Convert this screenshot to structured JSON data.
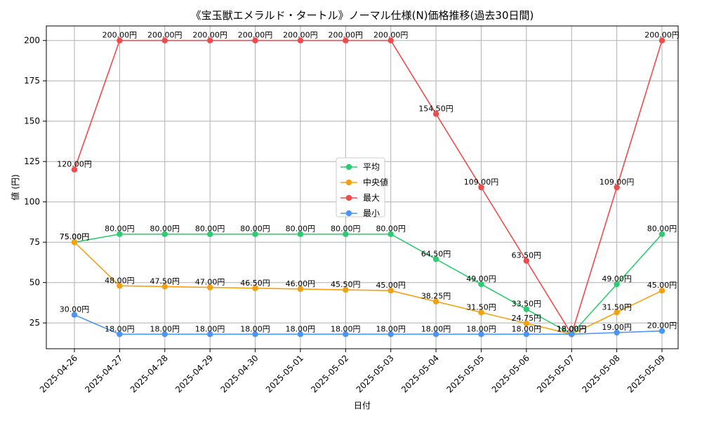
{
  "chart_data": {
    "type": "line",
    "title": "《宝玉獣エメラルド・タートル》ノーマル仕様(N)価格推移(過去30日間)",
    "xlabel": "日付",
    "ylabel": "値 (円)",
    "value_suffix": "円",
    "grid": true,
    "legend_position": "center",
    "ylim": [
      9,
      209
    ],
    "yticks": [
      25,
      50,
      75,
      100,
      125,
      150,
      175,
      200
    ],
    "categories": [
      "2025-04-26",
      "2025-04-27",
      "2025-04-28",
      "2025-04-29",
      "2025-04-30",
      "2025-05-01",
      "2025-05-02",
      "2025-05-03",
      "2025-05-04",
      "2025-05-05",
      "2025-05-06",
      "2025-05-07",
      "2025-05-08",
      "2025-05-09"
    ],
    "series": [
      {
        "name": "平均",
        "color": "#2ecc71",
        "values": [
          75.0,
          80.0,
          80.0,
          80.0,
          80.0,
          80.0,
          80.0,
          80.0,
          64.5,
          49.0,
          33.5,
          18.0,
          49.0,
          80.0
        ]
      },
      {
        "name": "中央値",
        "color": "#f5a00f",
        "values": [
          75.0,
          48.0,
          47.5,
          47.0,
          46.5,
          46.0,
          45.5,
          45.0,
          38.25,
          31.5,
          24.75,
          18.0,
          31.5,
          45.0
        ]
      },
      {
        "name": "最大",
        "color": "#ef4b4b",
        "values": [
          120.0,
          200.0,
          200.0,
          200.0,
          200.0,
          200.0,
          200.0,
          200.0,
          154.5,
          109.0,
          63.5,
          18.0,
          109.0,
          200.0
        ]
      },
      {
        "name": "最小",
        "color": "#4a95f5",
        "values": [
          30.0,
          18.0,
          18.0,
          18.0,
          18.0,
          18.0,
          18.0,
          18.0,
          18.0,
          18.0,
          18.0,
          18.0,
          19.0,
          20.0
        ]
      }
    ]
  }
}
